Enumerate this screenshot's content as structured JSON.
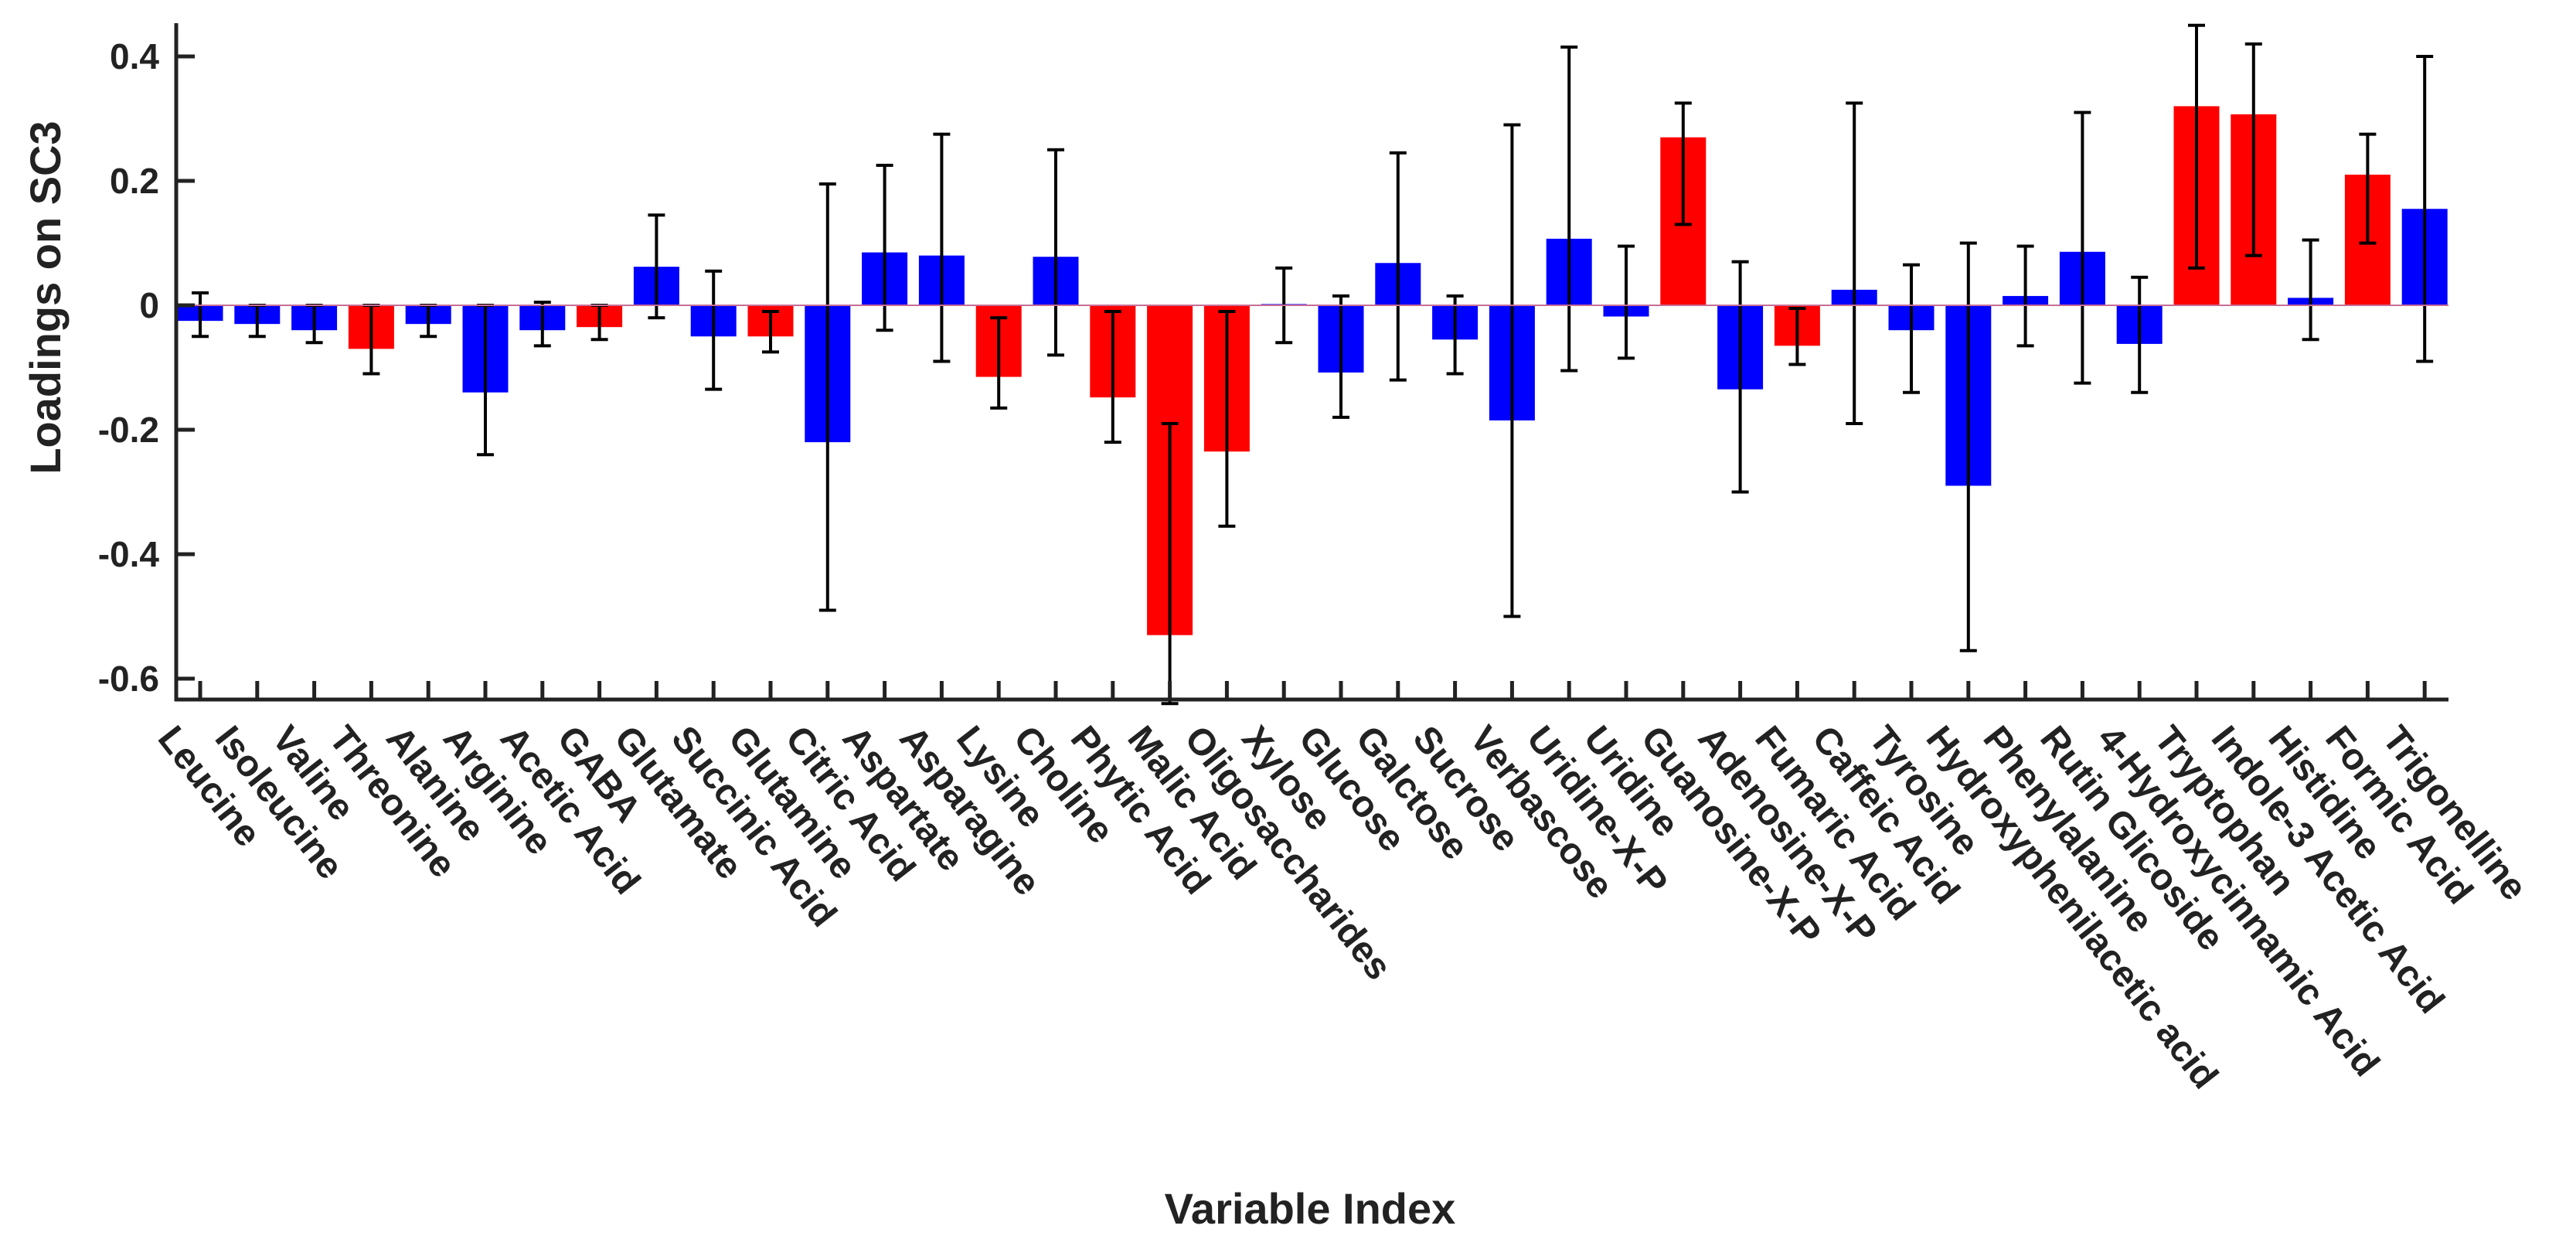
{
  "chart_data": {
    "type": "bar",
    "title": "",
    "xlabel": "Variable Index",
    "ylabel": "Loadings on SC3",
    "ylim": [
      -0.64,
      0.45
    ],
    "yticks": [
      0.4,
      0.2,
      0,
      -0.2,
      -0.4,
      -0.6
    ],
    "ytick_labels": [
      "0.4",
      "0.2",
      "0",
      "-0.2",
      "-0.4",
      "-0.6"
    ],
    "grid": false,
    "legend": "none",
    "colors": {
      "significant": "#ff0000",
      "non_significant": "#0000ff",
      "error_bar": "#000000",
      "axis": "#222222"
    },
    "categories": [
      "Leucine",
      "Isoleucine",
      "Valine",
      "Threonine",
      "Alanine",
      "Arginine",
      "Acetic Acid",
      "GABA",
      "Glutamate",
      "Succinic Acid",
      "Glutamine",
      "Citric Acid",
      "Aspartate",
      "Asparagine",
      "Lysine",
      "Choline",
      "Phytic Acid",
      "Malic Acid",
      "Oligosaccharides",
      "Xylose",
      "Glucose",
      "Galctose",
      "Sucrose",
      "Verbascose",
      "Uridine-X-P",
      "Uridine",
      "Guanosine-X-P",
      "Adenosine-X-P",
      "Fumaric Acid",
      "Caffeic Acid",
      "Tyrosine",
      "Hydroxyphenilacetic acid",
      "Phenylalanine",
      "Rutin Glicoside",
      "4-Hydroxycinnamic Acid",
      "Tryptophan",
      "Indole-3 Acetic Acid",
      "Histidine",
      "Formic Acid",
      "Trigonelline"
    ],
    "values": [
      -0.025,
      -0.03,
      -0.04,
      -0.07,
      -0.03,
      -0.14,
      -0.04,
      -0.035,
      0.062,
      -0.05,
      -0.05,
      -0.22,
      0.085,
      0.08,
      -0.115,
      0.078,
      -0.148,
      -0.53,
      -0.235,
      0.002,
      -0.108,
      0.068,
      -0.055,
      -0.185,
      0.107,
      -0.018,
      0.27,
      -0.135,
      -0.065,
      0.025,
      -0.04,
      -0.29,
      0.015,
      0.086,
      -0.062,
      0.32,
      0.307,
      0.012,
      0.21,
      0.155
    ],
    "error_low": [
      -0.05,
      -0.05,
      -0.06,
      -0.11,
      -0.05,
      -0.24,
      -0.065,
      -0.055,
      -0.02,
      -0.135,
      -0.075,
      -0.49,
      -0.04,
      -0.09,
      -0.165,
      -0.08,
      -0.22,
      -0.64,
      -0.355,
      -0.06,
      -0.18,
      -0.12,
      -0.11,
      -0.5,
      -0.105,
      -0.085,
      0.13,
      -0.3,
      -0.095,
      -0.19,
      -0.14,
      -0.555,
      -0.065,
      -0.125,
      -0.14,
      0.06,
      0.08,
      -0.055,
      0.1,
      -0.09
    ],
    "error_high": [
      0.02,
      0.0,
      0.0,
      0.0,
      0.0,
      0.0,
      0.005,
      0.0,
      0.145,
      0.055,
      -0.01,
      0.195,
      0.225,
      0.275,
      -0.02,
      0.25,
      -0.01,
      -0.19,
      -0.01,
      0.06,
      0.015,
      0.245,
      0.015,
      0.29,
      0.415,
      0.095,
      0.325,
      0.07,
      -0.005,
      0.325,
      0.065,
      0.1,
      0.095,
      0.31,
      0.045,
      0.45,
      0.42,
      0.105,
      0.275,
      0.4
    ],
    "significant": [
      false,
      false,
      false,
      true,
      false,
      false,
      false,
      true,
      false,
      false,
      true,
      false,
      false,
      false,
      true,
      false,
      true,
      true,
      true,
      false,
      false,
      false,
      false,
      false,
      false,
      false,
      true,
      false,
      true,
      false,
      false,
      false,
      false,
      false,
      false,
      true,
      true,
      false,
      true,
      false
    ]
  }
}
